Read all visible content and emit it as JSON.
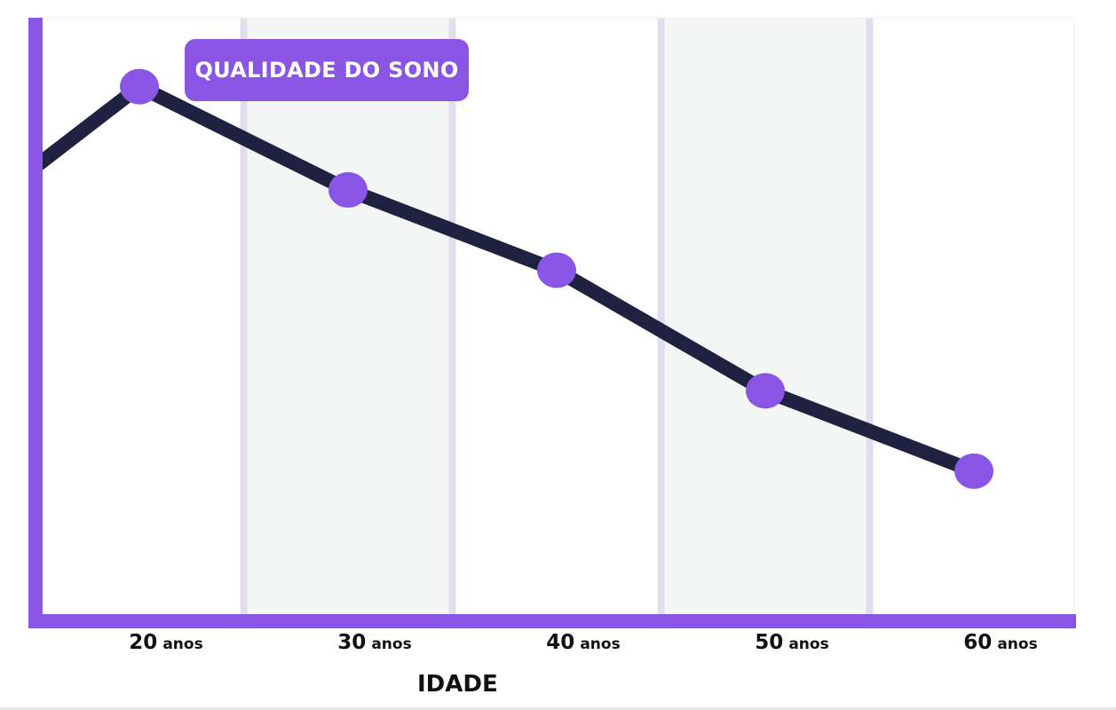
{
  "chart_data": {
    "type": "line",
    "x": [
      15,
      20,
      30,
      40,
      50,
      60
    ],
    "categories": [
      "",
      "20",
      "30",
      "40",
      "50",
      "60"
    ],
    "tick_unit": "anos",
    "series": [
      {
        "name": "QUALIDADE DO SONO",
        "values": [
          79,
          93,
          75,
          61,
          40,
          26
        ]
      }
    ],
    "xlabel": "IDADE",
    "ylabel": "",
    "title": "",
    "xlim": [
      15,
      65
    ],
    "ylim": [
      0,
      105
    ],
    "legend_position": "top-left",
    "grid": false,
    "colors": {
      "axis": "#8a55e4",
      "line": "#1e2140",
      "marker": "#8a55e4",
      "band_shade": "#f4f6f6",
      "band_border": "#e2dcef"
    }
  }
}
